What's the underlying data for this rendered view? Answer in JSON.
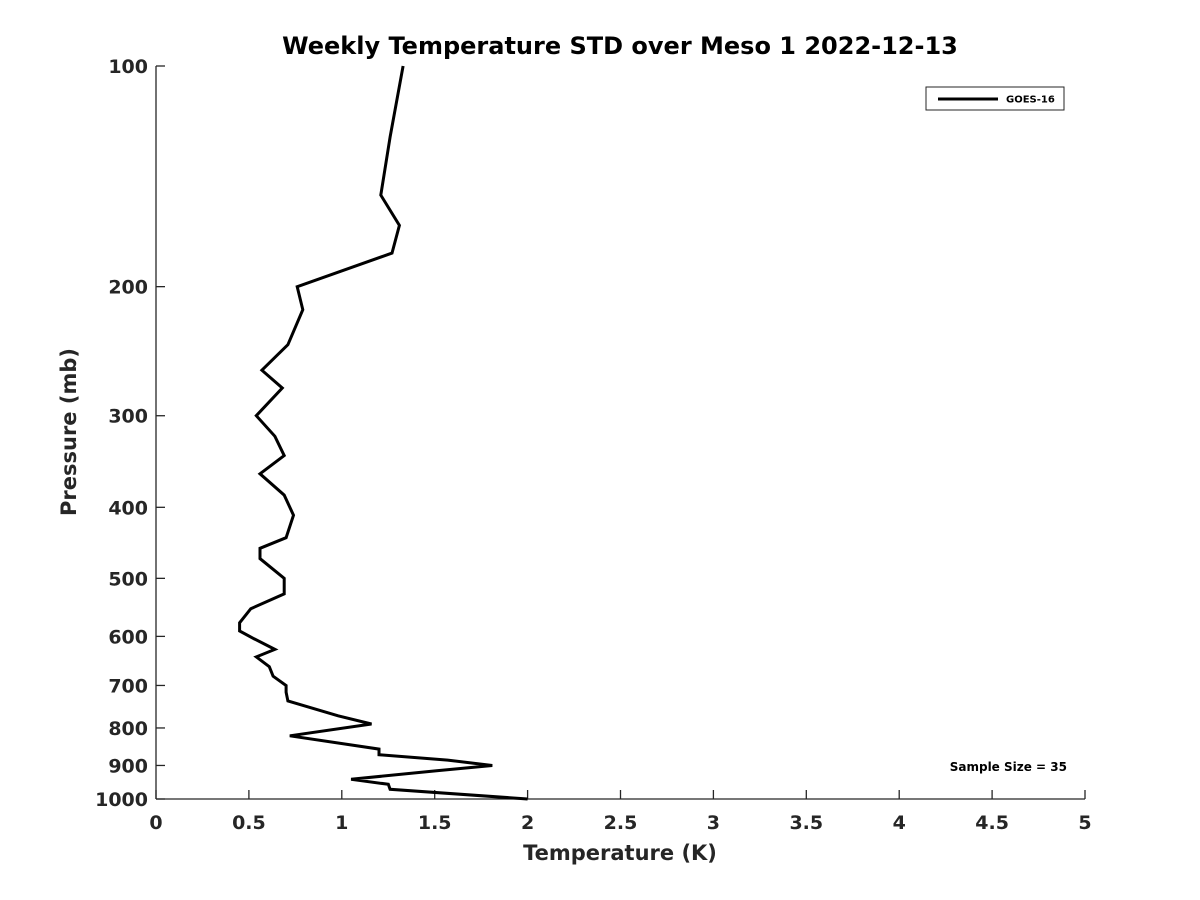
{
  "chart_data": {
    "type": "line",
    "title": "Weekly Temperature STD over Meso 1 2022-12-13",
    "xlabel": "Temperature (K)",
    "ylabel": "Pressure (mb)",
    "xlim": [
      0,
      5
    ],
    "ylim": [
      100,
      1000
    ],
    "yscale": "log",
    "y_reversed": true,
    "grid": false,
    "x_ticks": [
      0,
      0.5,
      1,
      1.5,
      2,
      2.5,
      3,
      3.5,
      4,
      4.5,
      5
    ],
    "x_tick_labels": [
      "0",
      "0.5",
      "1",
      "1.5",
      "2",
      "2.5",
      "3",
      "3.5",
      "4",
      "4.5",
      "5"
    ],
    "y_ticks": [
      100,
      200,
      300,
      400,
      500,
      600,
      700,
      800,
      900,
      1000
    ],
    "y_tick_labels": [
      "100",
      "200",
      "300",
      "400",
      "500",
      "600",
      "700",
      "800",
      "900",
      "1000"
    ],
    "legend": {
      "location": "top-right",
      "entries": [
        "GOES-16"
      ]
    },
    "annotation": "Sample Size = 35",
    "series": [
      {
        "name": "GOES-16",
        "color": "#000000",
        "x": [
          1.33,
          1.26,
          1.21,
          1.31,
          1.27,
          0.76,
          0.79,
          0.71,
          0.57,
          0.68,
          0.54,
          0.64,
          0.69,
          0.56,
          0.69,
          0.74,
          0.7,
          0.56,
          0.56,
          0.69,
          0.69,
          0.51,
          0.45,
          0.45,
          0.53,
          0.64,
          0.54,
          0.61,
          0.63,
          0.7,
          0.7,
          0.71,
          0.98,
          1.16,
          0.72,
          1.2,
          1.2,
          1.57,
          1.81,
          1.51,
          1.05,
          1.25,
          1.26,
          2.0
        ],
        "y": [
          100,
          125,
          150,
          165,
          180,
          200,
          215,
          240,
          260,
          275,
          300,
          320,
          340,
          360,
          385,
          410,
          440,
          455,
          470,
          500,
          525,
          550,
          575,
          590,
          605,
          625,
          640,
          660,
          680,
          700,
          715,
          735,
          770,
          790,
          820,
          855,
          870,
          885,
          900,
          915,
          940,
          955,
          970,
          1000
        ]
      }
    ]
  }
}
